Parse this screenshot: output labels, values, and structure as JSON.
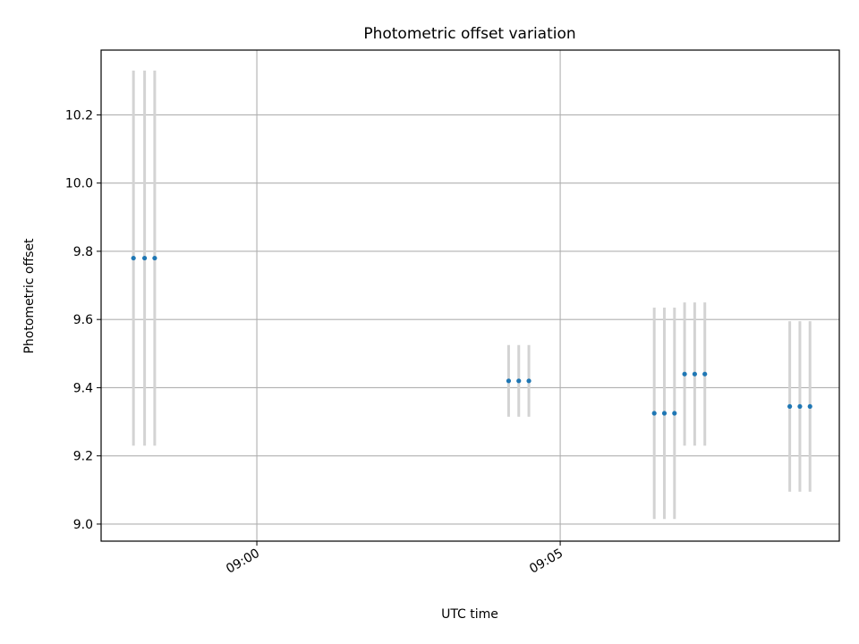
{
  "chart_data": {
    "type": "scatter",
    "title": "Photometric offset variation",
    "xlabel": "UTC time",
    "ylabel": "Photometric offset",
    "x_axis_type": "time",
    "xlim": [
      "08:57:26",
      "09:09:36"
    ],
    "ylim": [
      8.95,
      10.39
    ],
    "xticks": [
      {
        "value": "09:00",
        "label": "09:00"
      },
      {
        "value": "09:05",
        "label": "09:05"
      }
    ],
    "yticks": [
      {
        "value": 9.0,
        "label": "9.0"
      },
      {
        "value": 9.2,
        "label": "9.2"
      },
      {
        "value": 9.4,
        "label": "9.4"
      },
      {
        "value": 9.6,
        "label": "9.6"
      },
      {
        "value": 9.8,
        "label": "9.8"
      },
      {
        "value": 10.0,
        "label": "10.0"
      },
      {
        "value": 10.2,
        "label": "10.2"
      }
    ],
    "grid": true,
    "marker_color": "#1f77b4",
    "errorbar_color": "#d3d3d3",
    "points": [
      {
        "x": "08:57:58",
        "y": 9.78,
        "yerr": 0.55
      },
      {
        "x": "08:58:09",
        "y": 9.78,
        "yerr": 0.55
      },
      {
        "x": "08:58:19",
        "y": 9.78,
        "yerr": 0.55
      },
      {
        "x": "09:04:09",
        "y": 9.42,
        "yerr": 0.105
      },
      {
        "x": "09:04:19",
        "y": 9.42,
        "yerr": 0.105
      },
      {
        "x": "09:04:29",
        "y": 9.42,
        "yerr": 0.105
      },
      {
        "x": "09:06:33",
        "y": 9.325,
        "yerr": 0.31
      },
      {
        "x": "09:06:43",
        "y": 9.325,
        "yerr": 0.31
      },
      {
        "x": "09:06:53",
        "y": 9.325,
        "yerr": 0.31
      },
      {
        "x": "09:07:03",
        "y": 9.44,
        "yerr": 0.21
      },
      {
        "x": "09:07:13",
        "y": 9.44,
        "yerr": 0.21
      },
      {
        "x": "09:07:23",
        "y": 9.44,
        "yerr": 0.21
      },
      {
        "x": "09:08:47",
        "y": 9.345,
        "yerr": 0.25
      },
      {
        "x": "09:08:57",
        "y": 9.345,
        "yerr": 0.25
      },
      {
        "x": "09:09:07",
        "y": 9.345,
        "yerr": 0.25
      }
    ]
  }
}
